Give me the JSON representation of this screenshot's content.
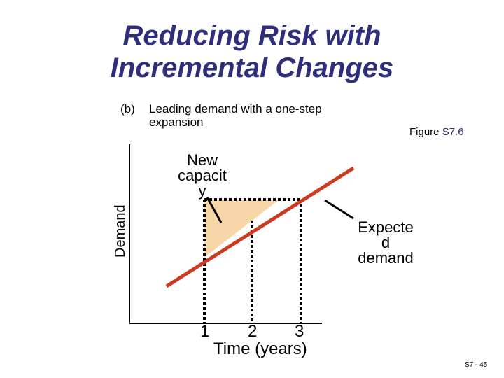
{
  "title": {
    "line1": "Reducing Risk with",
    "line2": "Incremental Changes"
  },
  "subtitle": {
    "tag": "(b)",
    "line1": "Leading demand with a one-step",
    "line2": "expansion"
  },
  "figure_ref": {
    "prefix": "Figure ",
    "number": "S7.6"
  },
  "axes": {
    "y_label": "Demand",
    "x_label": "Time (years)",
    "ticks": [
      "1",
      "2",
      "3"
    ]
  },
  "labels": {
    "new_capacity": [
      "New",
      "capacit",
      "y"
    ],
    "expected_demand": [
      "Expecte",
      "d",
      "demand"
    ]
  },
  "slide_number": "S7 - 45",
  "colors": {
    "title": "#2e2e7a",
    "demand_line": "#cc3a22",
    "capacity_fill": "#f7d7a8",
    "capacity_line": "#000000"
  }
}
